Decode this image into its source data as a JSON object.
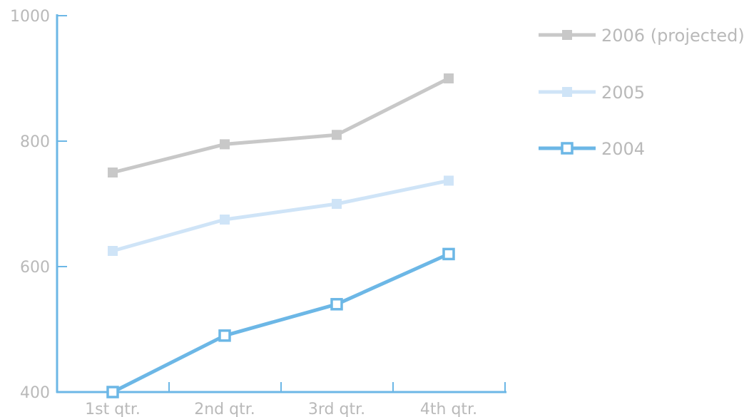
{
  "chart_data": {
    "type": "line",
    "categories": [
      "1st qtr.",
      "2nd qtr.",
      "3rd qtr.",
      "4th qtr."
    ],
    "ylim": [
      400,
      1000
    ],
    "yticks": [
      400,
      600,
      800,
      1000
    ],
    "grid": false,
    "legend_position": "top-right",
    "series": [
      {
        "name": "2006 (projected)",
        "values": [
          750,
          795,
          810,
          900
        ],
        "color": "#c8c8c8",
        "marker": "filled-square"
      },
      {
        "name": "2005",
        "values": [
          625,
          675,
          700,
          737
        ],
        "color": "#cfe4f7",
        "marker": "filled-square"
      },
      {
        "name": "2004",
        "values": [
          400,
          490,
          540,
          620
        ],
        "color": "#6cb7e6",
        "marker": "hollow-square"
      }
    ],
    "axis_color": "#6cb7e6"
  }
}
